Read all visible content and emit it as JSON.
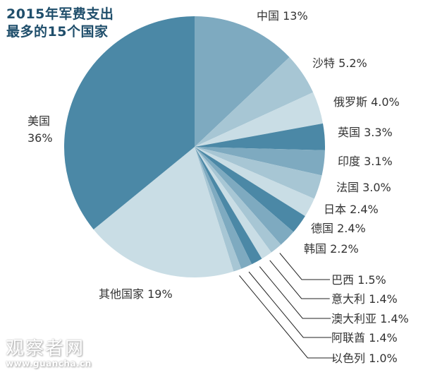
{
  "title": {
    "line1": "2015年军费支出",
    "line2": "最多的15个国家"
  },
  "chart_data": {
    "type": "pie",
    "title": "2015年军费支出最多的15个国家",
    "start_angle": "12 o'clock, clockwise",
    "categories": [
      "中国",
      "沙特",
      "俄罗斯",
      "英国",
      "印度",
      "法国",
      "日本",
      "德国",
      "韩国",
      "巴西",
      "意大利",
      "澳大利亚",
      "阿联酋",
      "以色列",
      "其他国家",
      "美国"
    ],
    "values": [
      13,
      5.2,
      4.0,
      3.3,
      3.1,
      3.0,
      2.4,
      2.4,
      2.2,
      1.5,
      1.4,
      1.4,
      1.4,
      1.0,
      19,
      36
    ],
    "unit": "%",
    "labels": [
      "中国 13%",
      "沙特 5.2%",
      "俄罗斯 4.0%",
      "英国 3.3%",
      "印度 3.1%",
      "法国 3.0%",
      "日本 2.4%",
      "德国 2.4%",
      "韩国 2.2%",
      "巴西 1.5%",
      "意大利 1.4%",
      "澳大利亚 1.4%",
      "阿联酋 1.4%",
      "以色列 1.0%",
      "其他国家 19%",
      "美国 36%"
    ],
    "colors": [
      "#7eaac0",
      "#a7c6d4",
      "#c9dde5",
      "#4b88a6",
      "#7eaac0",
      "#a7c6d4",
      "#c9dde5",
      "#4b88a6",
      "#7eaac0",
      "#a7c6d4",
      "#c9dde5",
      "#4b88a6",
      "#7eaac0",
      "#a7c6d4",
      "#c9dde5",
      "#4b88a6"
    ]
  },
  "labels": {
    "china": "中国 13%",
    "saudi": "沙特 5.2%",
    "russia": "俄罗斯 4.0%",
    "uk": "英国 3.3%",
    "india": "印度 3.1%",
    "france": "法国 3.0%",
    "japan": "日本 2.4%",
    "germany": "德国 2.4%",
    "korea": "韩国 2.2%",
    "brazil": "巴西 1.5%",
    "italy": "意大利 1.4%",
    "australia": "澳大利亚 1.4%",
    "uae": "阿联酋 1.4%",
    "israel": "以色列 1.0%",
    "others": "其他国家 19%",
    "usa_name": "美国",
    "usa_value": "36%"
  },
  "watermark": {
    "main": "观察者网",
    "sub": "www.guancha.cn"
  }
}
